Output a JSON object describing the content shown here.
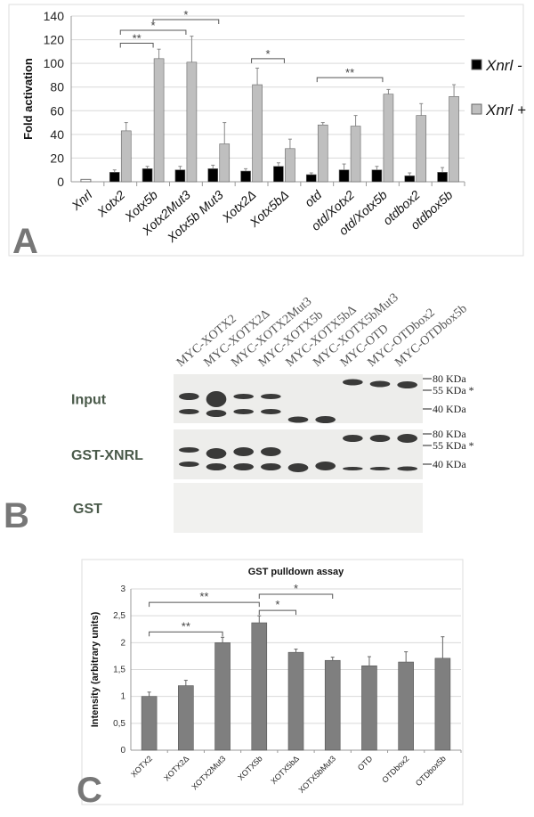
{
  "panels": {
    "a": "A",
    "b": "B",
    "c": "C"
  },
  "chart_data": [
    {
      "type": "bar",
      "panel": "A",
      "title": "",
      "xlabel": "",
      "ylabel": "Fold activation",
      "ylim": [
        0,
        140
      ],
      "yticks": [
        0,
        20,
        40,
        60,
        80,
        100,
        120,
        140
      ],
      "grid": true,
      "legend_position": "right",
      "categories": [
        "Xnrl",
        "Xotx2",
        "Xotx5b",
        "Xotx2Mut3",
        "Xotx5b Mut3",
        "Xotx2Δ",
        "Xotx5bΔ",
        "otd",
        "otd/Xotx2",
        "otd/Xotx5b",
        "otdbox2",
        "otdbox5b"
      ],
      "control": {
        "category": "Xnrl",
        "value": 2,
        "color": "#ffffff"
      },
      "series": [
        {
          "name": "Xnrl -",
          "color": "#000000",
          "values": [
            null,
            8,
            11,
            10,
            11,
            9,
            13,
            6,
            10,
            10,
            5,
            8
          ],
          "errors": [
            null,
            2,
            2,
            3,
            3,
            2,
            3,
            1.5,
            5,
            3,
            2.5,
            4
          ]
        },
        {
          "name": "Xnrl +",
          "color": "#bfbfbf",
          "values": [
            null,
            43,
            104,
            101,
            32,
            82,
            28,
            48,
            47,
            74,
            56,
            72
          ],
          "errors": [
            null,
            7,
            8,
            22,
            18,
            14,
            8,
            2,
            9,
            4,
            10,
            10
          ]
        }
      ],
      "significance": [
        {
          "from": 1,
          "to": 2,
          "label": "**",
          "y": 117
        },
        {
          "from": 1,
          "to": 3,
          "label": "*",
          "y": 128
        },
        {
          "from": 2,
          "to": 4,
          "label": "*",
          "y": 137
        },
        {
          "from": 5,
          "to": 6,
          "label": "*",
          "y": 104
        },
        {
          "from": 7,
          "to": 9,
          "label": "**",
          "y": 88
        }
      ]
    },
    {
      "type": "bar",
      "panel": "C",
      "title": "GST pulldown assay",
      "xlabel": "",
      "ylabel": "Intensity (arbitrary units)",
      "ylim": [
        0,
        3
      ],
      "yticks": [
        "0",
        "0,5",
        "1",
        "1,5",
        "2",
        "2,5",
        "3"
      ],
      "grid": true,
      "categories": [
        "XOTX2",
        "XOTX2Δ",
        "XOTX2Mut3",
        "XOTX5b",
        "XOTX5bΔ",
        "XOTX5bMut3",
        "OTD",
        "OTDbox2",
        "OTDbox5b"
      ],
      "series": [
        {
          "color": "#7f7f7f",
          "values": [
            1.0,
            1.2,
            2.0,
            2.37,
            1.82,
            1.67,
            1.57,
            1.64,
            1.71
          ],
          "errors": [
            0.08,
            0.1,
            0.1,
            0.13,
            0.06,
            0.06,
            0.17,
            0.19,
            0.4
          ]
        }
      ],
      "significance": [
        {
          "from": 0,
          "to": 2,
          "label": "**",
          "y": 2.2
        },
        {
          "from": 0,
          "to": 3,
          "label": "**",
          "y": 2.75
        },
        {
          "from": 3,
          "to": 4,
          "label": "*",
          "y": 2.6
        },
        {
          "from": 3,
          "to": 5,
          "label": "*",
          "y": 2.9
        }
      ]
    }
  ],
  "blot": {
    "lanes": [
      "MYC-XOTX2",
      "MYC-XOTX2Δ",
      "MYC-XOTX2Mut3",
      "MYC-XOTX5b",
      "MYC-XOTX5bΔ",
      "MYC-XOTX5bMut3",
      "MYC-OTD",
      "MYC-OTDbox2",
      "MYC-OTDbox5b"
    ],
    "rows": [
      {
        "label": "Input",
        "markers": [
          "80 KDa",
          "55 KDa *",
          "40 KDa"
        ]
      },
      {
        "label": "GST-XNRL",
        "markers": [
          "80 KDa",
          "55 KDa *",
          "40 KDa"
        ]
      },
      {
        "label": "GST",
        "markers": []
      }
    ]
  }
}
